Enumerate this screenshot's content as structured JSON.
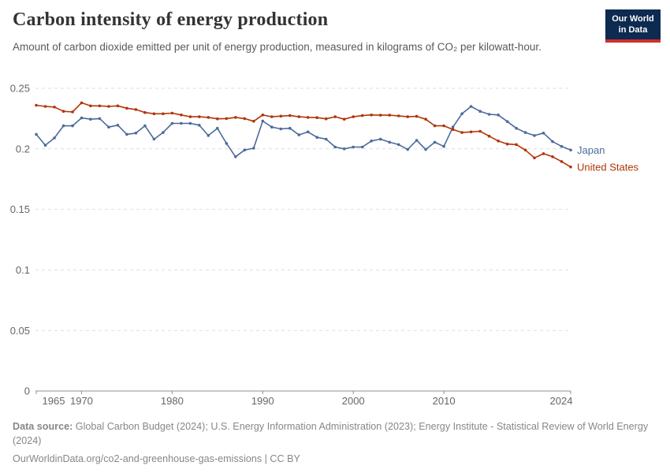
{
  "header": {
    "title": "Carbon intensity of energy production",
    "subtitle": "Amount of carbon dioxide emitted per unit of energy production, measured in kilograms of CO₂ per kilowatt-hour.",
    "logo": {
      "line1": "Our World",
      "line2": "in Data"
    }
  },
  "chart_data": {
    "type": "line",
    "title": "Carbon intensity of energy production",
    "ylabel": "",
    "xlabel": "",
    "unit": "kilograms of CO₂ per kilowatt-hour",
    "ylim": [
      0,
      0.25
    ],
    "yticks": [
      0,
      0.05,
      0.1,
      0.15,
      0.2,
      0.25
    ],
    "xticks": [
      1965,
      1970,
      1980,
      1990,
      2000,
      2010,
      2024
    ],
    "grid": "horizontal-dashed",
    "legend_position": "line-end-labels",
    "x_range": [
      1965,
      2024
    ],
    "x": [
      1965,
      1966,
      1967,
      1968,
      1969,
      1970,
      1971,
      1972,
      1973,
      1974,
      1975,
      1976,
      1977,
      1978,
      1979,
      1980,
      1981,
      1982,
      1983,
      1984,
      1985,
      1986,
      1987,
      1988,
      1989,
      1990,
      1991,
      1992,
      1993,
      1994,
      1995,
      1996,
      1997,
      1998,
      1999,
      2000,
      2001,
      2002,
      2003,
      2004,
      2005,
      2006,
      2007,
      2008,
      2009,
      2010,
      2011,
      2012,
      2013,
      2014,
      2015,
      2016,
      2017,
      2018,
      2019,
      2020,
      2021,
      2022,
      2023,
      2024
    ],
    "series": [
      {
        "name": "Japan",
        "color": "#4c6a9c",
        "values": [
          0.212,
          0.203,
          0.209,
          0.219,
          0.219,
          0.2255,
          0.2245,
          0.225,
          0.218,
          0.2195,
          0.212,
          0.213,
          0.219,
          0.208,
          0.2135,
          0.221,
          0.221,
          0.221,
          0.2195,
          0.211,
          0.217,
          0.2045,
          0.1935,
          0.199,
          0.2005,
          0.223,
          0.218,
          0.2165,
          0.217,
          0.2115,
          0.214,
          0.2095,
          0.208,
          0.2015,
          0.2,
          0.2015,
          0.2015,
          0.2065,
          0.208,
          0.2055,
          0.2035,
          0.1995,
          0.207,
          0.1995,
          0.2055,
          0.202,
          0.218,
          0.229,
          0.235,
          0.231,
          0.2285,
          0.228,
          0.2225,
          0.217,
          0.2135,
          0.211,
          0.213,
          0.206,
          0.202,
          0.199
        ]
      },
      {
        "name": "United States",
        "color": "#b13507",
        "values": [
          0.236,
          0.235,
          0.2345,
          0.231,
          0.2305,
          0.238,
          0.2355,
          0.2355,
          0.235,
          0.2355,
          0.2335,
          0.2325,
          0.23,
          0.229,
          0.229,
          0.2295,
          0.228,
          0.2265,
          0.2265,
          0.226,
          0.2248,
          0.225,
          0.226,
          0.225,
          0.2228,
          0.228,
          0.2265,
          0.227,
          0.2275,
          0.2265,
          0.226,
          0.2258,
          0.2248,
          0.2265,
          0.2245,
          0.2265,
          0.2275,
          0.228,
          0.2278,
          0.2278,
          0.2272,
          0.2265,
          0.2268,
          0.2245,
          0.219,
          0.219,
          0.216,
          0.2135,
          0.214,
          0.2145,
          0.2105,
          0.2065,
          0.204,
          0.2035,
          0.199,
          0.1925,
          0.196,
          0.1935,
          0.1895,
          0.185
        ]
      }
    ]
  },
  "footer": {
    "datasource_label": "Data source:",
    "datasource_text": " Global Carbon Budget (2024); U.S. Energy Information Administration (2023); Energy Institute - Statistical Review of World Energy (2024)",
    "url_line": "OurWorldinData.org/co2-and-greenhouse-gas-emissions | CC BY"
  },
  "style": {
    "grid_color": "#dedede",
    "axis_color": "#8f8f8f",
    "tick_label_color": "#666666"
  }
}
